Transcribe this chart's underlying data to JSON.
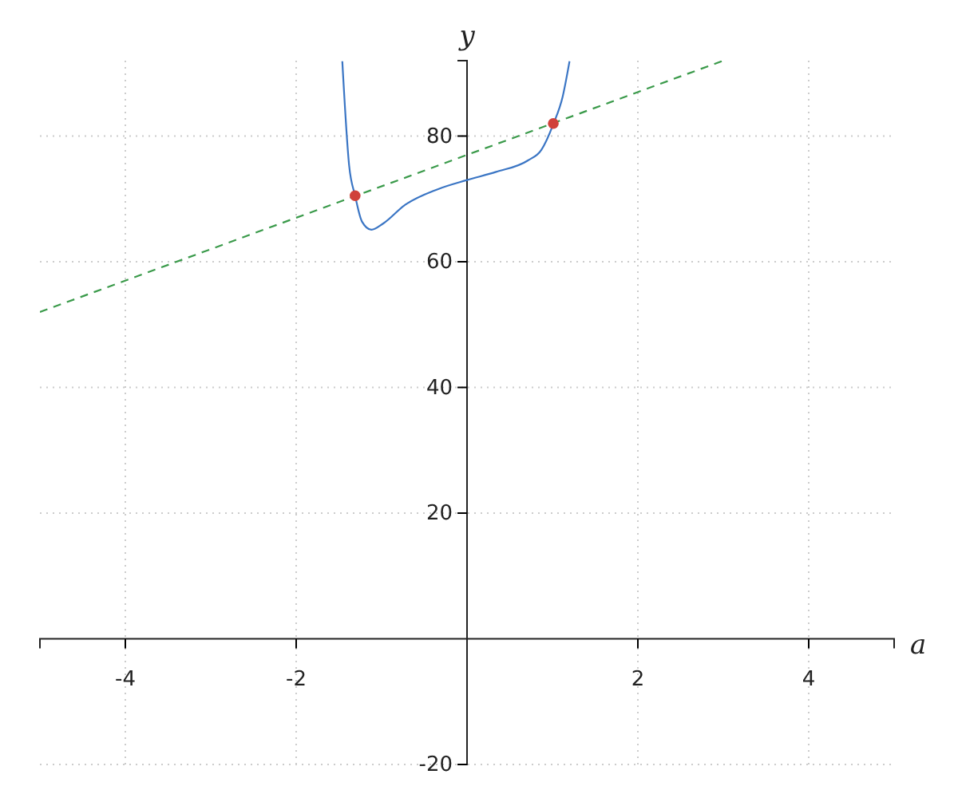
{
  "chart_data": {
    "type": "line",
    "xlabel": "a",
    "ylabel": "y",
    "xlim": [
      -5,
      5
    ],
    "ylim": [
      -20,
      92
    ],
    "xticks": [
      -4,
      -2,
      2,
      4
    ],
    "yticks": [
      -20,
      20,
      40,
      60,
      80
    ],
    "grid": true,
    "series": [
      {
        "color": "#3a75c4",
        "line_style": "solid",
        "marker": "none",
        "x": [
          -1.46,
          -1.38,
          -1.31,
          -1.23,
          -1.12,
          -0.98,
          -0.73,
          -0.35,
          0,
          0.34,
          0.71,
          0.87,
          1.01,
          1.12,
          1.2
        ],
        "values": [
          91.9,
          75.3,
          70.5,
          66.4,
          65.1,
          66.1,
          69.0,
          71.5,
          73.0,
          74.3,
          76.1,
          77.8,
          81.9,
          86.3,
          91.9
        ]
      },
      {
        "color": "#3a9a4a",
        "line_style": "dashed",
        "marker": "none",
        "x": [
          -5,
          3
        ],
        "values": [
          52,
          92
        ]
      },
      {
        "type": "scatter",
        "color": "#d0413a",
        "marker": "circle",
        "x": [
          -1.31,
          1.01
        ],
        "values": [
          70.5,
          82.0
        ]
      }
    ]
  }
}
